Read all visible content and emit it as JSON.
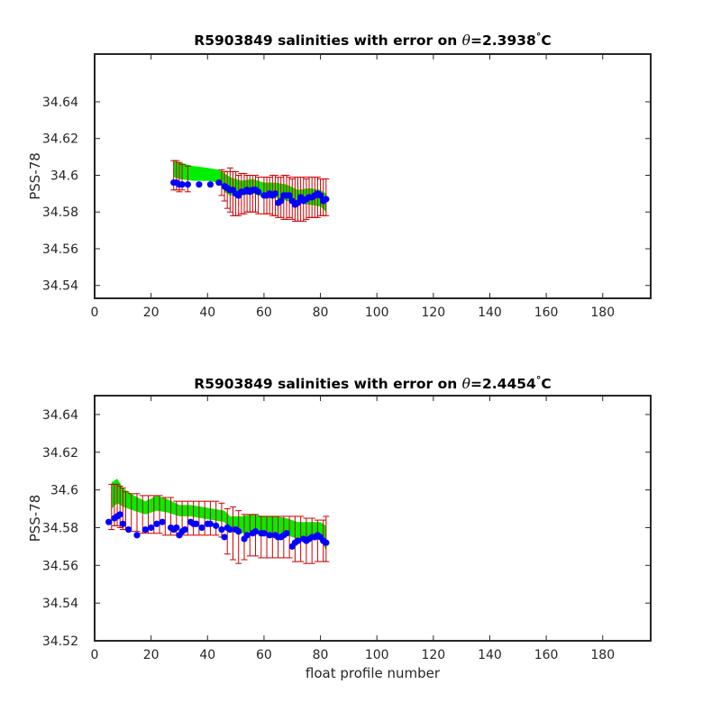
{
  "chart_data": [
    {
      "type": "scatter",
      "title_prefix": "R5903849 salinities with error on ",
      "theta_symbol": "θ",
      "title_suffix": "=2.3938",
      "degree_symbol": "°",
      "unit": "C",
      "xlabel": "",
      "ylabel": "PSS-78",
      "xlim": [
        0,
        197
      ],
      "ylim": [
        34.533,
        34.666
      ],
      "xticks": [
        0,
        20,
        40,
        60,
        80,
        100,
        120,
        140,
        160,
        180
      ],
      "yticks": [
        34.54,
        34.56,
        34.58,
        34.6,
        34.62,
        34.64
      ],
      "ytick_labels": [
        "34.54",
        "34.56",
        "34.58",
        "34.6",
        "34.62",
        "34.64"
      ],
      "colors": {
        "band": "#00ee00",
        "errorbar": "#cc0000",
        "points": "#0000ff",
        "axis": "#262626"
      },
      "band": {
        "x": [
          28,
          30,
          35,
          40,
          44,
          46,
          48,
          52,
          56,
          60,
          64,
          68,
          72,
          76,
          80,
          82
        ],
        "upper": [
          34.608,
          34.607,
          34.605,
          34.604,
          34.603,
          34.601,
          34.599,
          34.597,
          34.598,
          34.596,
          34.596,
          34.595,
          34.592,
          34.593,
          34.592,
          34.59
        ],
        "lower": [
          34.599,
          34.598,
          34.597,
          34.597,
          34.596,
          34.591,
          34.589,
          34.589,
          34.59,
          34.588,
          34.588,
          34.586,
          34.585,
          34.584,
          34.583,
          34.58
        ]
      },
      "errorbars": {
        "x": [
          28,
          29,
          30,
          31,
          33,
          45,
          46,
          47,
          48,
          49,
          50,
          51,
          52,
          53,
          54,
          55,
          56,
          57,
          58,
          60,
          61,
          62,
          63,
          64,
          65,
          66,
          67,
          68,
          69,
          70,
          71,
          72,
          73,
          74,
          75,
          76,
          77,
          78,
          79,
          80,
          81,
          82
        ],
        "center": [
          34.6,
          34.6,
          34.599,
          34.599,
          34.598,
          34.596,
          34.594,
          34.592,
          34.592,
          34.59,
          34.59,
          34.589,
          34.59,
          34.59,
          34.59,
          34.59,
          34.59,
          34.59,
          34.589,
          34.589,
          34.589,
          34.589,
          34.589,
          34.589,
          34.588,
          34.588,
          34.588,
          34.588,
          34.588,
          34.587,
          34.587,
          34.587,
          34.587,
          34.587,
          34.587,
          34.588,
          34.588,
          34.588,
          34.588,
          34.588,
          34.588,
          34.588
        ],
        "half_error": [
          0.008,
          0.008,
          0.008,
          0.007,
          0.007,
          0.007,
          0.008,
          0.01,
          0.012,
          0.012,
          0.012,
          0.011,
          0.011,
          0.011,
          0.01,
          0.01,
          0.01,
          0.01,
          0.01,
          0.01,
          0.01,
          0.01,
          0.011,
          0.011,
          0.011,
          0.011,
          0.012,
          0.012,
          0.011,
          0.011,
          0.012,
          0.012,
          0.012,
          0.012,
          0.011,
          0.011,
          0.011,
          0.011,
          0.011,
          0.01,
          0.01,
          0.01
        ]
      },
      "points": {
        "x": [
          28,
          29,
          30,
          31,
          33,
          37,
          41,
          44,
          46,
          47,
          48,
          49,
          50,
          51,
          52,
          53,
          54,
          55,
          56,
          57,
          58,
          60,
          61,
          62,
          63,
          64,
          65,
          66,
          67,
          68,
          69,
          70,
          71,
          72,
          73,
          74,
          75,
          76,
          77,
          78,
          79,
          80,
          81,
          82
        ],
        "y": [
          34.596,
          34.596,
          34.595,
          34.595,
          34.595,
          34.595,
          34.595,
          34.596,
          34.594,
          34.593,
          34.592,
          34.592,
          34.59,
          34.589,
          34.591,
          34.591,
          34.592,
          34.591,
          34.592,
          34.592,
          34.591,
          34.589,
          34.589,
          34.59,
          34.589,
          34.59,
          34.585,
          34.586,
          34.589,
          34.589,
          34.589,
          34.586,
          34.584,
          34.585,
          34.588,
          34.586,
          34.587,
          34.588,
          34.588,
          34.589,
          34.59,
          34.589,
          34.586,
          34.587
        ]
      }
    },
    {
      "type": "scatter",
      "title_prefix": "R5903849 salinities with error on ",
      "theta_symbol": "θ",
      "title_suffix": "=2.4454",
      "degree_symbol": "°",
      "unit": "C",
      "xlabel": "float profile number",
      "ylabel": "PSS-78",
      "xlim": [
        0,
        197
      ],
      "ylim": [
        34.52,
        34.65
      ],
      "xticks": [
        0,
        20,
        40,
        60,
        80,
        100,
        120,
        140,
        160,
        180
      ],
      "yticks": [
        34.52,
        34.54,
        34.56,
        34.58,
        34.6,
        34.62,
        34.64
      ],
      "ytick_labels": [
        "34.52",
        "34.54",
        "34.56",
        "34.58",
        "34.6",
        "34.62",
        "34.64"
      ],
      "colors": {
        "band": "#00ee00",
        "errorbar": "#cc0000",
        "points": "#0000ff",
        "axis": "#262626"
      },
      "band": {
        "x": [
          6,
          8,
          10,
          14,
          18,
          22,
          26,
          30,
          34,
          38,
          42,
          46,
          48,
          52,
          56,
          60,
          64,
          68,
          72,
          76,
          80,
          82
        ],
        "upper": [
          34.604,
          34.606,
          34.601,
          34.597,
          34.594,
          34.597,
          34.595,
          34.592,
          34.592,
          34.591,
          34.59,
          34.589,
          34.586,
          34.586,
          34.587,
          34.586,
          34.586,
          34.585,
          34.583,
          34.583,
          34.583,
          34.581
        ],
        "lower": [
          34.59,
          34.593,
          34.591,
          34.589,
          34.587,
          34.589,
          34.588,
          34.586,
          34.586,
          34.585,
          34.584,
          34.583,
          34.578,
          34.577,
          34.578,
          34.577,
          34.577,
          34.576,
          34.574,
          34.574,
          34.574,
          34.568
        ]
      },
      "errorbars": {
        "x": [
          6,
          7,
          8,
          9,
          10,
          11,
          13,
          15,
          17,
          19,
          21,
          23,
          25,
          27,
          29,
          31,
          33,
          35,
          37,
          39,
          41,
          43,
          45,
          47,
          49,
          51,
          53,
          55,
          57,
          59,
          61,
          63,
          65,
          67,
          69,
          71,
          73,
          75,
          77,
          79,
          81,
          82
        ],
        "center": [
          34.591,
          34.592,
          34.592,
          34.591,
          34.59,
          34.589,
          34.588,
          34.588,
          34.587,
          34.587,
          34.587,
          34.587,
          34.586,
          34.586,
          34.585,
          34.585,
          34.585,
          34.585,
          34.585,
          34.585,
          34.585,
          34.585,
          34.584,
          34.578,
          34.577,
          34.575,
          34.575,
          34.576,
          34.576,
          34.575,
          34.575,
          34.575,
          34.575,
          34.575,
          34.575,
          34.574,
          34.574,
          34.573,
          34.573,
          34.573,
          34.573,
          34.574
        ],
        "half_error": [
          0.012,
          0.011,
          0.011,
          0.011,
          0.011,
          0.01,
          0.01,
          0.01,
          0.01,
          0.01,
          0.01,
          0.01,
          0.01,
          0.01,
          0.009,
          0.009,
          0.009,
          0.009,
          0.009,
          0.009,
          0.009,
          0.009,
          0.009,
          0.012,
          0.014,
          0.014,
          0.012,
          0.011,
          0.011,
          0.011,
          0.011,
          0.011,
          0.011,
          0.011,
          0.011,
          0.012,
          0.012,
          0.012,
          0.012,
          0.011,
          0.011,
          0.012
        ]
      },
      "points": {
        "x": [
          5,
          7,
          8,
          9,
          10,
          12,
          15,
          18,
          20,
          22,
          24,
          27,
          28,
          29,
          30,
          31,
          32,
          34,
          35,
          36,
          38,
          40,
          41,
          43,
          45,
          46,
          47,
          48,
          50,
          51,
          53,
          54,
          56,
          57,
          59,
          60,
          62,
          64,
          65,
          66,
          67,
          68,
          70,
          71,
          72,
          74,
          75,
          76,
          77,
          78,
          79,
          80,
          81,
          82
        ],
        "y": [
          34.583,
          34.585,
          34.586,
          34.587,
          34.582,
          34.579,
          34.576,
          34.579,
          34.58,
          34.582,
          34.583,
          34.58,
          34.579,
          34.58,
          34.576,
          34.578,
          34.579,
          34.583,
          34.582,
          34.582,
          34.58,
          34.582,
          34.582,
          34.581,
          34.579,
          34.575,
          34.58,
          34.579,
          34.579,
          34.578,
          34.574,
          34.576,
          34.577,
          34.578,
          34.577,
          34.577,
          34.576,
          34.576,
          34.575,
          34.575,
          34.576,
          34.577,
          34.57,
          34.572,
          34.573,
          34.574,
          34.573,
          34.574,
          34.575,
          34.575,
          34.576,
          34.575,
          34.573,
          34.572
        ]
      }
    }
  ]
}
